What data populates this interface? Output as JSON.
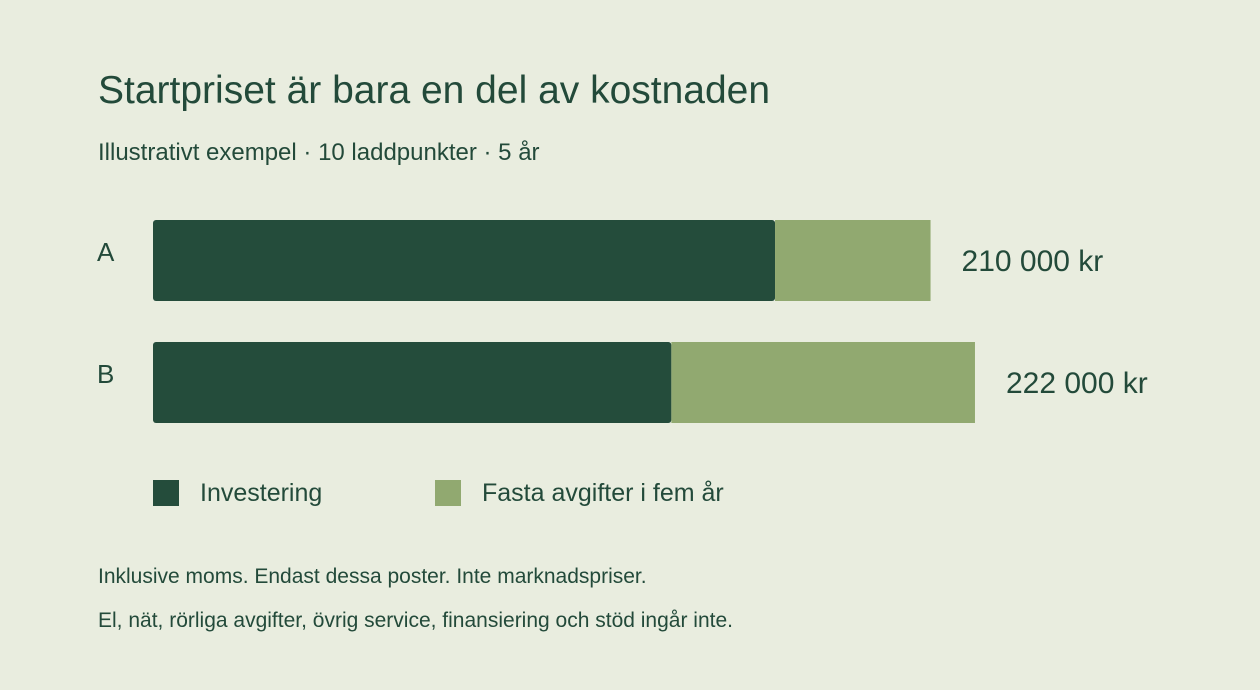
{
  "title": "Startpriset är bara en del av kostnaden",
  "subtitle": "Illustrativt exempel · 10 laddpunkter · 5 år",
  "notes": [
    "Inklusive moms. Endast dessa poster. Inte marknadspriser.",
    "El, nät, rörliga avgifter, övrig service, finansiering och stöd ingår inte."
  ],
  "colors": {
    "background": "#e9eddf",
    "text": "#234a3a",
    "investering": "#244c3b",
    "fasta_avgifter": "#91a970"
  },
  "chart_data": {
    "type": "bar",
    "orientation": "horizontal",
    "stacked": true,
    "title": "Startpriset är bara en del av kostnaden",
    "subtitle": "Illustrativt exempel · 10 laddpunkter · 5 år",
    "categories": [
      "A",
      "B"
    ],
    "series": [
      {
        "name": "Investering",
        "values": [
          168000,
          140000
        ]
      },
      {
        "name": "Fasta avgifter i fem år",
        "values": [
          42000,
          82000
        ]
      }
    ],
    "totals": [
      210000,
      222000
    ],
    "total_labels": [
      "210 000 kr",
      "222 000 kr"
    ],
    "xlim": [
      0,
      232000
    ],
    "grid": false,
    "axes_visible": false,
    "legend": "bottom-left"
  }
}
